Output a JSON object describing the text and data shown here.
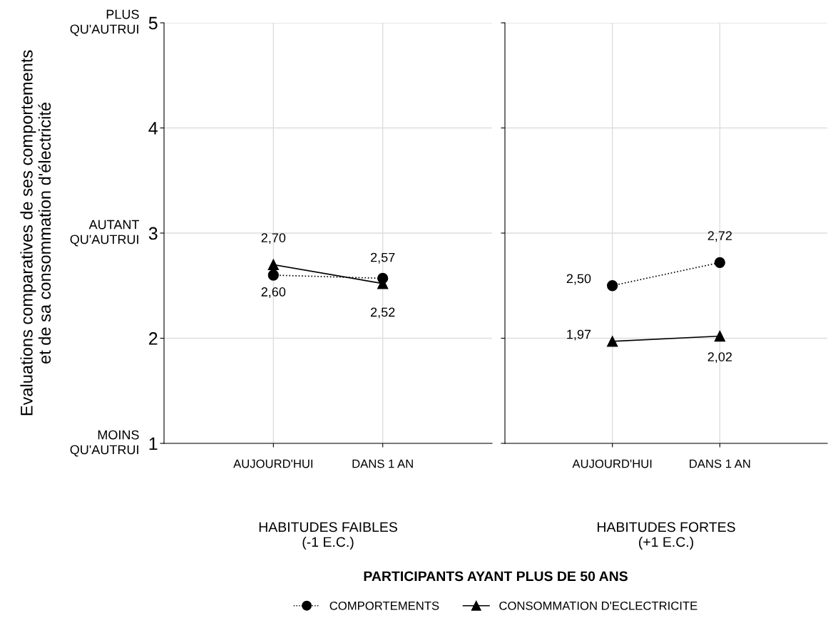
{
  "chart_data": [
    {
      "type": "line",
      "xlabel": "HABITUDES FAIBLES\n(-1 E.C.)",
      "ylabel": "Evaluations comparatives de ses comportements\net de sa consommation d'électricité",
      "categories": [
        "AUJOURD'HUI",
        "DANS 1 AN"
      ],
      "ylim": [
        1,
        5
      ],
      "yticks": [
        1,
        2,
        3,
        4,
        5
      ],
      "grid": true,
      "legend": "bottom",
      "annotations": [
        "PLUS\nQU'AUTRUI",
        "AUTANT\nQU'AUTRUI",
        "MOINS\nQU'AUTRUI",
        "PARTICIPANTS AYANT PLUS DE 50 ANS"
      ],
      "series": [
        {
          "name": "COMPORTEMENTS",
          "color": "#000000",
          "marker": "circle",
          "line_style": "dotted",
          "values": [
            2.6,
            2.57
          ],
          "value_labels": [
            "2,60",
            "2,57"
          ]
        },
        {
          "name": "CONSOMMATION D'ECLECTRICITE",
          "color": "#000000",
          "marker": "triangle",
          "line_style": "solid",
          "values": [
            2.7,
            2.52
          ],
          "value_labels": [
            "2,70",
            "2,52"
          ]
        }
      ]
    },
    {
      "type": "line",
      "xlabel": "HABITUDES FORTES\n(+1 E.C.)",
      "categories": [
        "AUJOURD'HUI",
        "DANS 1 AN"
      ],
      "ylim": [
        1,
        5
      ],
      "yticks": [
        1,
        2,
        3,
        4,
        5
      ],
      "grid": true,
      "tick_labels": "x",
      "series": [
        {
          "color": "#000000",
          "marker": "circle",
          "line_style": "dotted",
          "values": [
            2.5,
            2.72
          ],
          "value_labels": [
            "2,50",
            "2,72"
          ]
        },
        {
          "color": "#000000",
          "marker": "triangle",
          "line_style": "solid",
          "values": [
            1.97,
            2.02
          ],
          "value_labels": [
            "1,97",
            "2,02"
          ]
        }
      ]
    }
  ]
}
